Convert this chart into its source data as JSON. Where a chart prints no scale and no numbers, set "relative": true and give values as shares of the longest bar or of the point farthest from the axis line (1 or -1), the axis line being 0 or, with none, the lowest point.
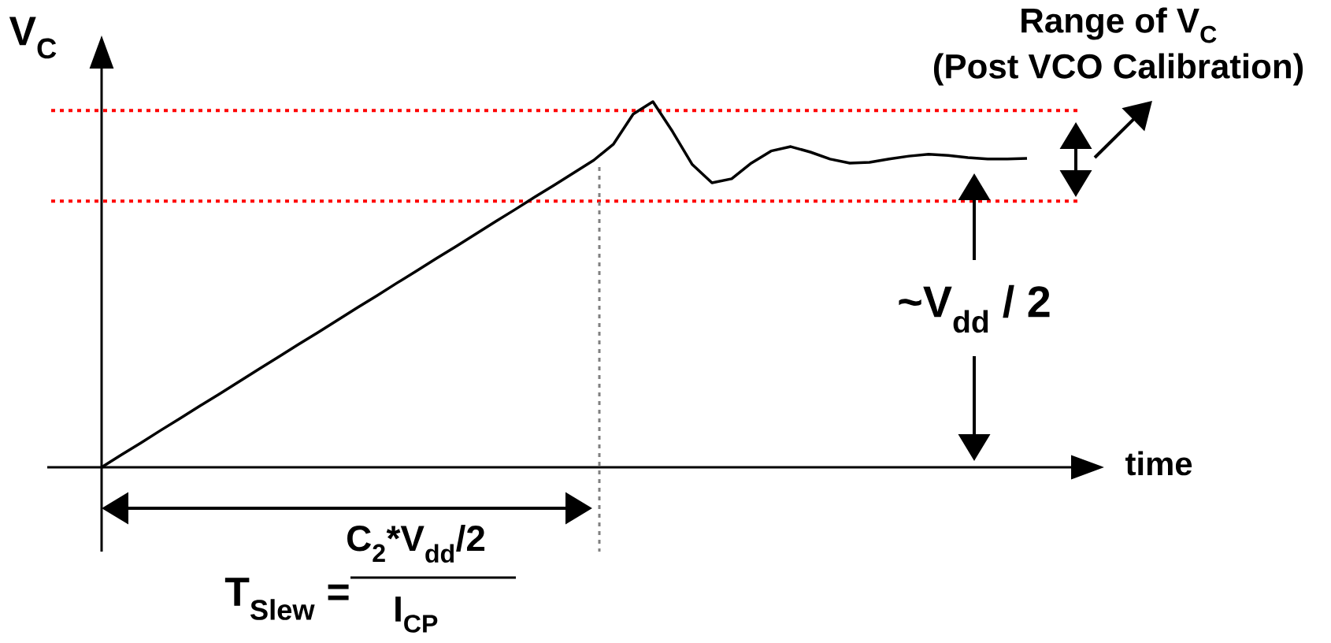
{
  "chart_data": {
    "type": "line",
    "relative": true,
    "xlabel": "time",
    "ylabel": "V$_{C}$",
    "categories": [
      null,
      null,
      null,
      null,
      null,
      null,
      null,
      null,
      null,
      null,
      null,
      null,
      null,
      null,
      null,
      null,
      null,
      null,
      null,
      null,
      null,
      null,
      null,
      null,
      null,
      null,
      null,
      null,
      null,
      null,
      null,
      null,
      null,
      null,
      null,
      null,
      null,
      null,
      null,
      null,
      null,
      null,
      null,
      null,
      null,
      null,
      null,
      null
    ],
    "series": [
      {
        "color": "#000000",
        "values": [
          0,
          0.034,
          0.067,
          0.101,
          0.134,
          0.168,
          0.201,
          0.235,
          0.269,
          0.302,
          0.336,
          0.369,
          0.403,
          0.437,
          0.47,
          0.504,
          0.537,
          0.571,
          0.604,
          0.638,
          0.672,
          0.705,
          0.739,
          0.772,
          0.806,
          0.84,
          0.884,
          0.966,
          1.0,
          0.918,
          0.828,
          0.778,
          0.789,
          0.832,
          0.865,
          0.877,
          0.862,
          0.843,
          0.832,
          0.834,
          0.843,
          0.851,
          0.856,
          0.853,
          0.847,
          0.843,
          0.843,
          0.845
        ]
      }
    ],
    "ref_lines": [
      {
        "axis": "y",
        "value": 0.976,
        "color": "#ff0000",
        "line_style": "dotted"
      },
      {
        "axis": "y",
        "value": 0.728,
        "color": "#ff0000",
        "line_style": "dotted"
      }
    ],
    "annotations": [
      "Range of V$_{C}$",
      "(Post VCO Calibration)",
      "~V$_{dd}$ / 2",
      "T$_{Slew}$ =",
      "C$_{2}$*V$_{dd}$/2",
      "I$_{CP}$"
    ]
  }
}
